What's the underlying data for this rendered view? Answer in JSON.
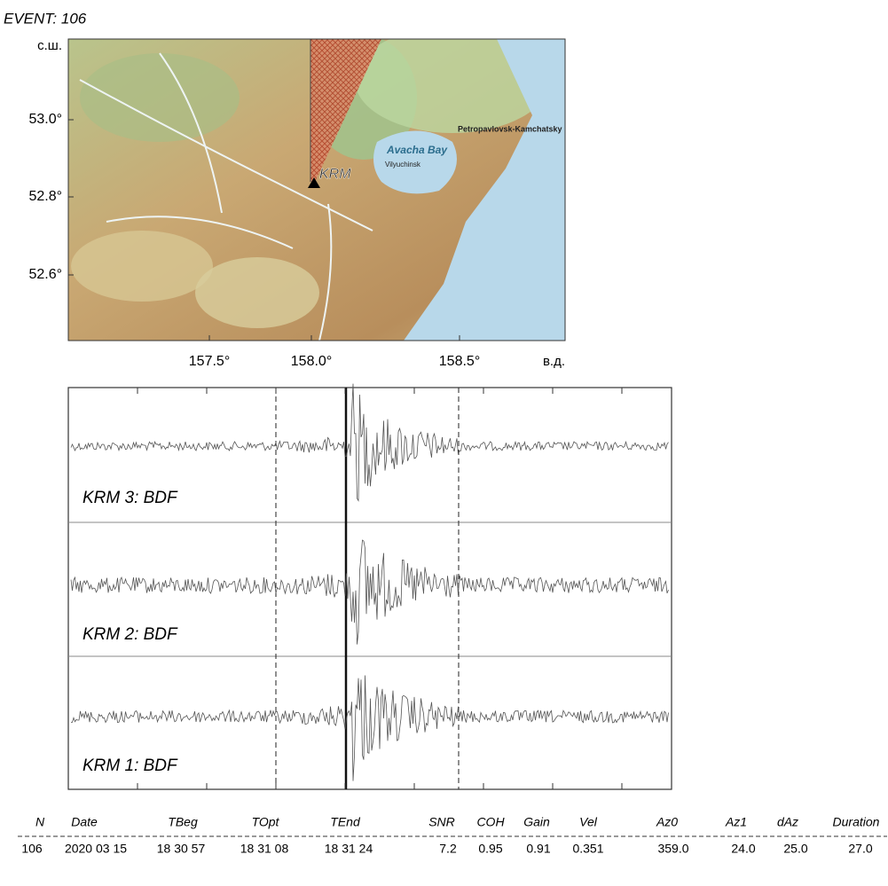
{
  "header": {
    "title": "EVENT: 106"
  },
  "map": {
    "lat_unit": "с.ш.",
    "lon_unit": "в.д.",
    "lat_labels": [
      "53.0°",
      "52.8°",
      "52.6°"
    ],
    "lon_labels": [
      "157.5°",
      "158.0°",
      "158.5°"
    ],
    "station": "KRM",
    "places": [
      "Avacha Bay",
      "Petropavlovsk-Kamchatsky",
      "Vilyuchinsk"
    ]
  },
  "traces": [
    "KRM 3: BDF",
    "KRM 2: BDF",
    "KRM 1: BDF"
  ],
  "table": {
    "headers": [
      "N",
      "Date",
      "TBeg",
      "TOpt",
      "TEnd",
      "SNR",
      "COH",
      "Gain",
      "Vel",
      "Az0",
      "Az1",
      "dAz",
      "Duration"
    ],
    "rows": [
      [
        "106",
        "2020 03 15",
        "18 30 57",
        "18 31 08",
        "18 31 24",
        "7.2",
        "0.95",
        "0.91",
        "0.351",
        "359.0",
        "24.0",
        "25.0",
        "27.0"
      ]
    ]
  }
}
